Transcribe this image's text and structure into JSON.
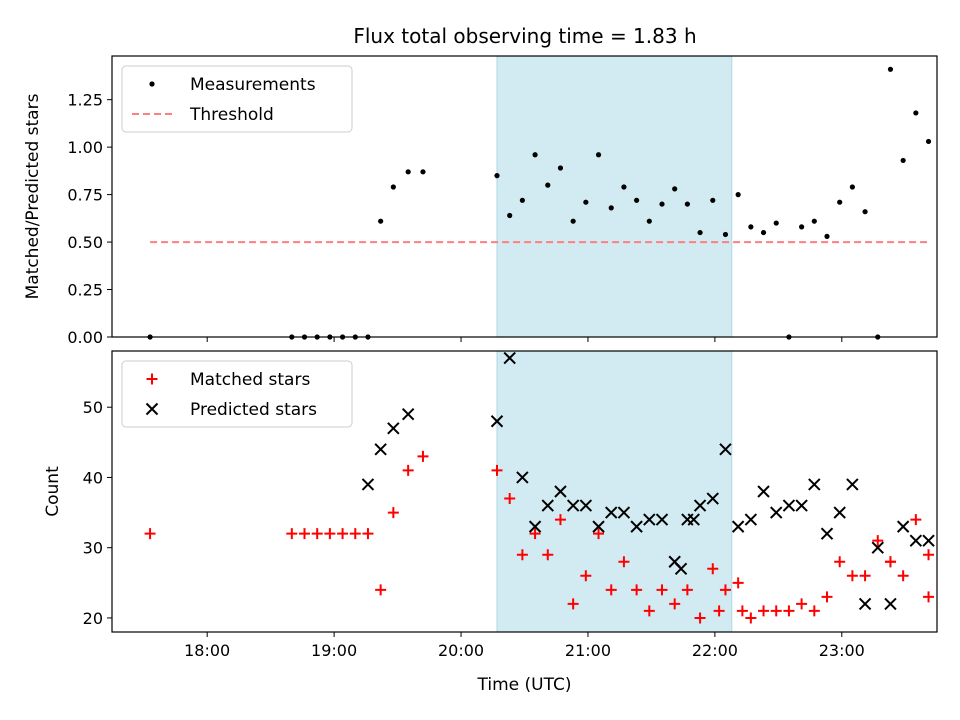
{
  "figure": {
    "title": "Flux total observing time = 1.83 h"
  },
  "chart_data": [
    {
      "type": "scatter",
      "ylabel": "Matched/Predicted stars",
      "xlabel": "",
      "xlim": [
        "17:15",
        "23:45"
      ],
      "ylim": [
        0,
        1.48
      ],
      "yticks": [
        "0.00",
        "0.25",
        "0.50",
        "0.75",
        "1.00",
        "1.25"
      ],
      "grid": false,
      "legend": "upper-left",
      "highlight_span": {
        "x0": "20:17",
        "x1": "22:08",
        "color": "#add8e6"
      },
      "series": [
        {
          "name": "Measurements",
          "marker": "dot",
          "color": "#000000",
          "x": [
            "17:33",
            "18:40",
            "18:46",
            "18:52",
            "18:58",
            "19:04",
            "19:10",
            "19:16",
            "19:22",
            "19:28",
            "19:35",
            "19:42",
            "20:17",
            "20:23",
            "20:29",
            "20:35",
            "20:41",
            "20:47",
            "20:53",
            "20:59",
            "21:05",
            "21:11",
            "21:17",
            "21:23",
            "21:29",
            "21:35",
            "21:41",
            "21:47",
            "21:53",
            "21:59",
            "22:05",
            "22:11",
            "22:17",
            "22:23",
            "22:29",
            "22:35",
            "22:41",
            "22:47",
            "22:53",
            "22:59",
            "23:05",
            "23:11",
            "23:17",
            "23:23",
            "23:29",
            "23:35",
            "23:41"
          ],
          "y": [
            0.0,
            0.0,
            0.0,
            0.0,
            0.0,
            0.0,
            0.0,
            0.0,
            0.61,
            0.79,
            0.87,
            0.87,
            0.85,
            0.64,
            0.72,
            0.96,
            0.8,
            0.89,
            0.61,
            0.71,
            0.96,
            0.68,
            0.79,
            0.72,
            0.61,
            0.7,
            0.78,
            0.7,
            0.55,
            0.72,
            0.54,
            0.75,
            0.58,
            0.55,
            0.6,
            0.0,
            0.58,
            0.61,
            0.53,
            0.71,
            0.79,
            0.66,
            0.0,
            1.41,
            0.93,
            1.18,
            1.03
          ]
        },
        {
          "name": "Threshold",
          "linestyle": "dashed",
          "color": "#ff7f7f",
          "x": [
            "17:33",
            "23:41"
          ],
          "y": [
            0.5,
            0.5
          ]
        }
      ]
    },
    {
      "type": "scatter",
      "ylabel": "Count",
      "xlabel": "Time (UTC)",
      "xlim": [
        "17:15",
        "23:45"
      ],
      "ylim": [
        18,
        58
      ],
      "yticks": [
        "20",
        "30",
        "40",
        "50"
      ],
      "xticks": [
        "18:00",
        "19:00",
        "20:00",
        "21:00",
        "22:00",
        "23:00"
      ],
      "grid": false,
      "legend": "upper-left",
      "highlight_span": {
        "x0": "20:17",
        "x1": "22:08",
        "color": "#add8e6"
      },
      "series": [
        {
          "name": "Matched stars",
          "marker": "plus",
          "color": "#ff0000",
          "x": [
            "17:33",
            "18:40",
            "18:46",
            "18:52",
            "18:58",
            "19:04",
            "19:10",
            "19:16",
            "19:22",
            "19:28",
            "19:35",
            "19:42",
            "20:17",
            "20:23",
            "20:29",
            "20:35",
            "20:41",
            "20:47",
            "20:53",
            "20:59",
            "21:05",
            "21:11",
            "21:17",
            "21:23",
            "21:29",
            "21:35",
            "21:41",
            "21:47",
            "21:53",
            "21:59",
            "22:05",
            "22:11",
            "22:17",
            "22:23",
            "22:29",
            "22:35",
            "22:41",
            "22:47",
            "22:53",
            "22:59",
            "23:05",
            "23:11",
            "23:17",
            "23:23",
            "23:29",
            "23:35",
            "23:41",
            "22:13",
            "22:02",
            "23:23",
            "23:41"
          ],
          "y": [
            32,
            32,
            32,
            32,
            32,
            32,
            32,
            32,
            24,
            35,
            41,
            43,
            41,
            37,
            29,
            32,
            29,
            34,
            22,
            26,
            32,
            24,
            28,
            24,
            21,
            24,
            22,
            24,
            20,
            27,
            24,
            25,
            20,
            21,
            21,
            21,
            22,
            21,
            23,
            28,
            26,
            26,
            31,
            28,
            26,
            34,
            23,
            21,
            21,
            28,
            29
          ]
        },
        {
          "name": "Predicted stars",
          "marker": "x",
          "color": "#000000",
          "x": [
            "19:16",
            "19:22",
            "19:28",
            "19:35",
            "20:17",
            "20:23",
            "20:29",
            "20:35",
            "20:41",
            "20:47",
            "20:53",
            "20:59",
            "21:05",
            "21:11",
            "21:17",
            "21:23",
            "21:29",
            "21:35",
            "21:41",
            "21:47",
            "21:53",
            "21:59",
            "22:05",
            "22:11",
            "22:17",
            "22:23",
            "22:29",
            "22:35",
            "22:41",
            "22:47",
            "22:53",
            "22:59",
            "23:05",
            "23:11",
            "23:17",
            "23:23",
            "23:29",
            "23:35",
            "23:41",
            "21:44",
            "21:50"
          ],
          "y": [
            39,
            44,
            47,
            49,
            48,
            57,
            40,
            33,
            36,
            38,
            36,
            36,
            33,
            35,
            35,
            33,
            34,
            34,
            28,
            34,
            36,
            37,
            44,
            33,
            34,
            38,
            35,
            36,
            36,
            39,
            32,
            35,
            39,
            22,
            30,
            22,
            33,
            31,
            31,
            27,
            34
          ]
        }
      ]
    }
  ]
}
